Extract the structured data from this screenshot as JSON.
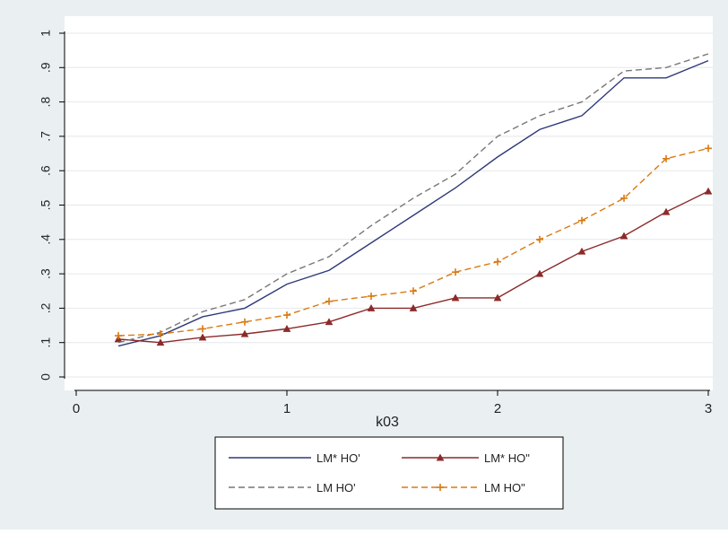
{
  "colors": {
    "background": "#eaf0f2",
    "plot_background": "#ffffff",
    "grid": "#e4e8ea",
    "axis": "#000000",
    "series_colors": [
      "#2f3a78",
      "#8c2a2a",
      "#777777",
      "#d97a13"
    ]
  },
  "chart_data": {
    "type": "line",
    "title": "",
    "xlabel": "k03",
    "ylabel": "",
    "xlim": [
      0,
      3
    ],
    "ylim": [
      0,
      1
    ],
    "xticks": [
      0,
      1,
      2,
      3
    ],
    "xtick_labels": [
      "0",
      "1",
      "2",
      "3"
    ],
    "yticks": [
      0,
      0.1,
      0.2,
      0.3,
      0.4,
      0.5,
      0.6,
      0.7,
      0.8,
      0.9,
      1
    ],
    "ytick_labels": [
      "0",
      ".1",
      ".2",
      ".3",
      ".4",
      ".5",
      ".6",
      ".7",
      ".8",
      ".9",
      "1"
    ],
    "grid": true,
    "legend_position": "bottom",
    "x": [
      0.2,
      0.4,
      0.6,
      0.8,
      1.0,
      1.2,
      1.4,
      1.6,
      1.8,
      2.0,
      2.2,
      2.4,
      2.6,
      2.8,
      3.0
    ],
    "series": [
      {
        "name": "LM* HO'",
        "style": "solid",
        "marker": "none",
        "color": "#2f3a78",
        "values": [
          0.09,
          0.12,
          0.175,
          0.2,
          0.27,
          0.31,
          0.39,
          0.47,
          0.55,
          0.64,
          0.72,
          0.76,
          0.87,
          0.87,
          0.92
        ]
      },
      {
        "name": "LM* HO\"",
        "style": "solid",
        "marker": "triangle",
        "color": "#8c2a2a",
        "values": [
          0.11,
          0.1,
          0.115,
          0.125,
          0.14,
          0.16,
          0.2,
          0.2,
          0.23,
          0.23,
          0.3,
          0.365,
          0.41,
          0.48,
          0.54
        ]
      },
      {
        "name": "LM HO'",
        "style": "dashed",
        "marker": "none",
        "color": "#777777",
        "values": [
          0.1,
          0.13,
          0.19,
          0.225,
          0.3,
          0.35,
          0.44,
          0.52,
          0.59,
          0.7,
          0.76,
          0.8,
          0.89,
          0.9,
          0.94
        ]
      },
      {
        "name": "LM HO\"",
        "style": "dashed",
        "marker": "plus",
        "color": "#d97a13",
        "values": [
          0.12,
          0.125,
          0.14,
          0.16,
          0.18,
          0.22,
          0.235,
          0.25,
          0.305,
          0.335,
          0.4,
          0.455,
          0.52,
          0.635,
          0.665
        ]
      }
    ]
  }
}
